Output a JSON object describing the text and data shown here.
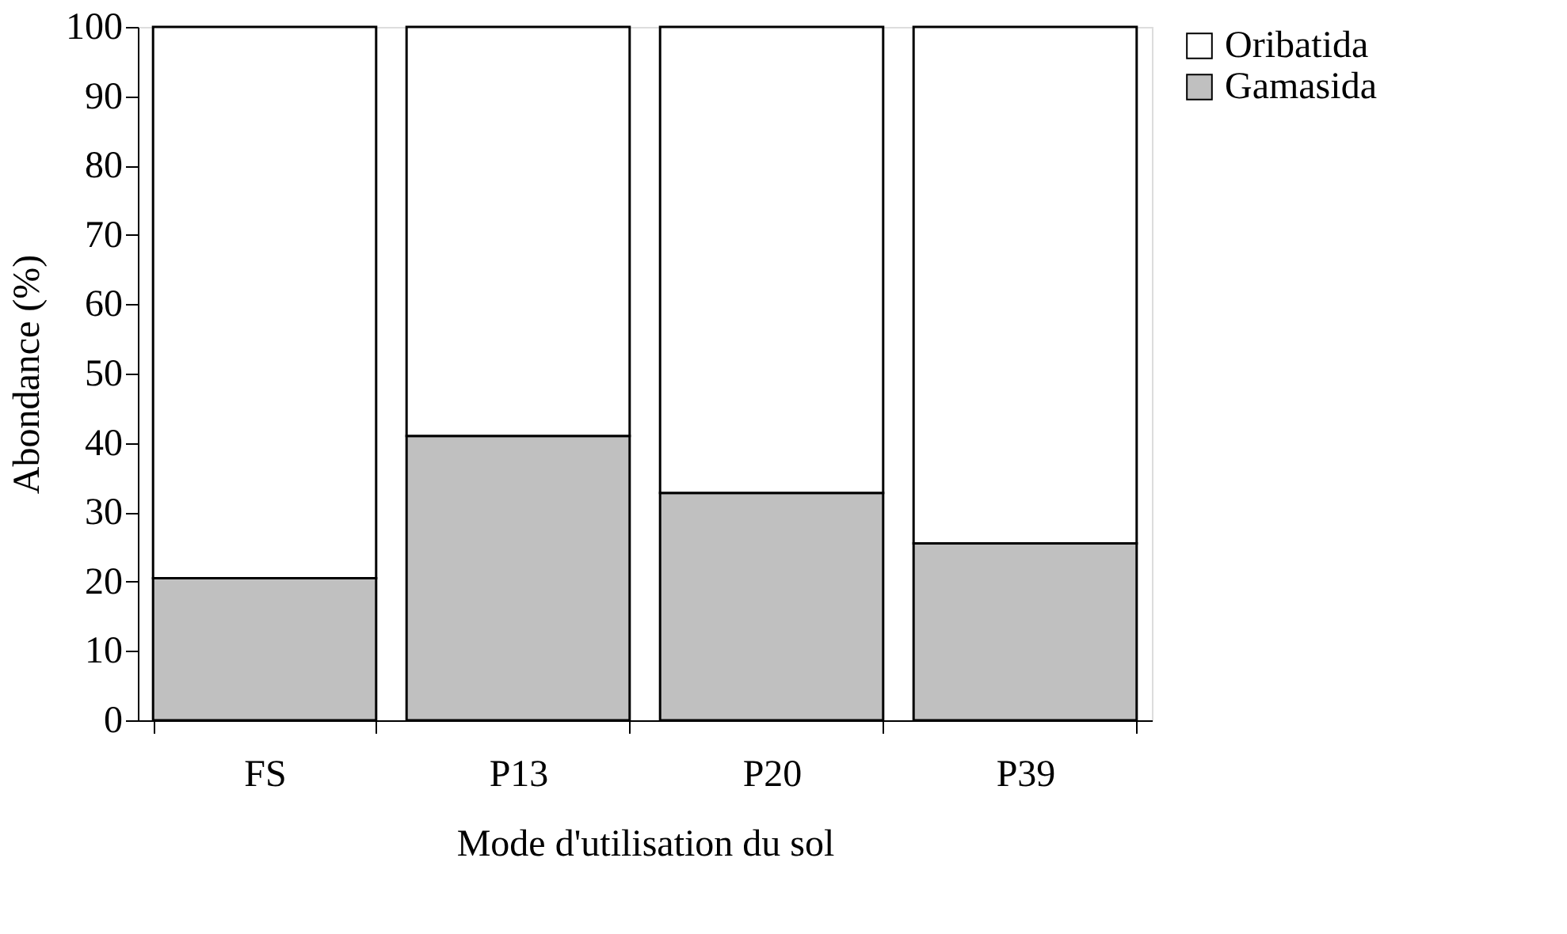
{
  "chart_data": {
    "type": "bar",
    "stacked": true,
    "xlabel": "Mode d'utilisation du sol",
    "ylabel": "Abondance (%)",
    "categories": [
      "FS",
      "P13",
      "P20",
      "P39"
    ],
    "series": [
      {
        "name": "Gamasida",
        "color": "#c0c0c0",
        "values": [
          20.5,
          41.0,
          32.8,
          25.5
        ]
      },
      {
        "name": "Oribatida",
        "color": "#ffffff",
        "values": [
          79.5,
          59.0,
          67.2,
          74.5
        ]
      }
    ],
    "ylim": [
      0,
      100
    ],
    "yticks": [
      0,
      10,
      20,
      30,
      40,
      50,
      60,
      70,
      80,
      90,
      100
    ],
    "grid": false,
    "legend": "right"
  }
}
